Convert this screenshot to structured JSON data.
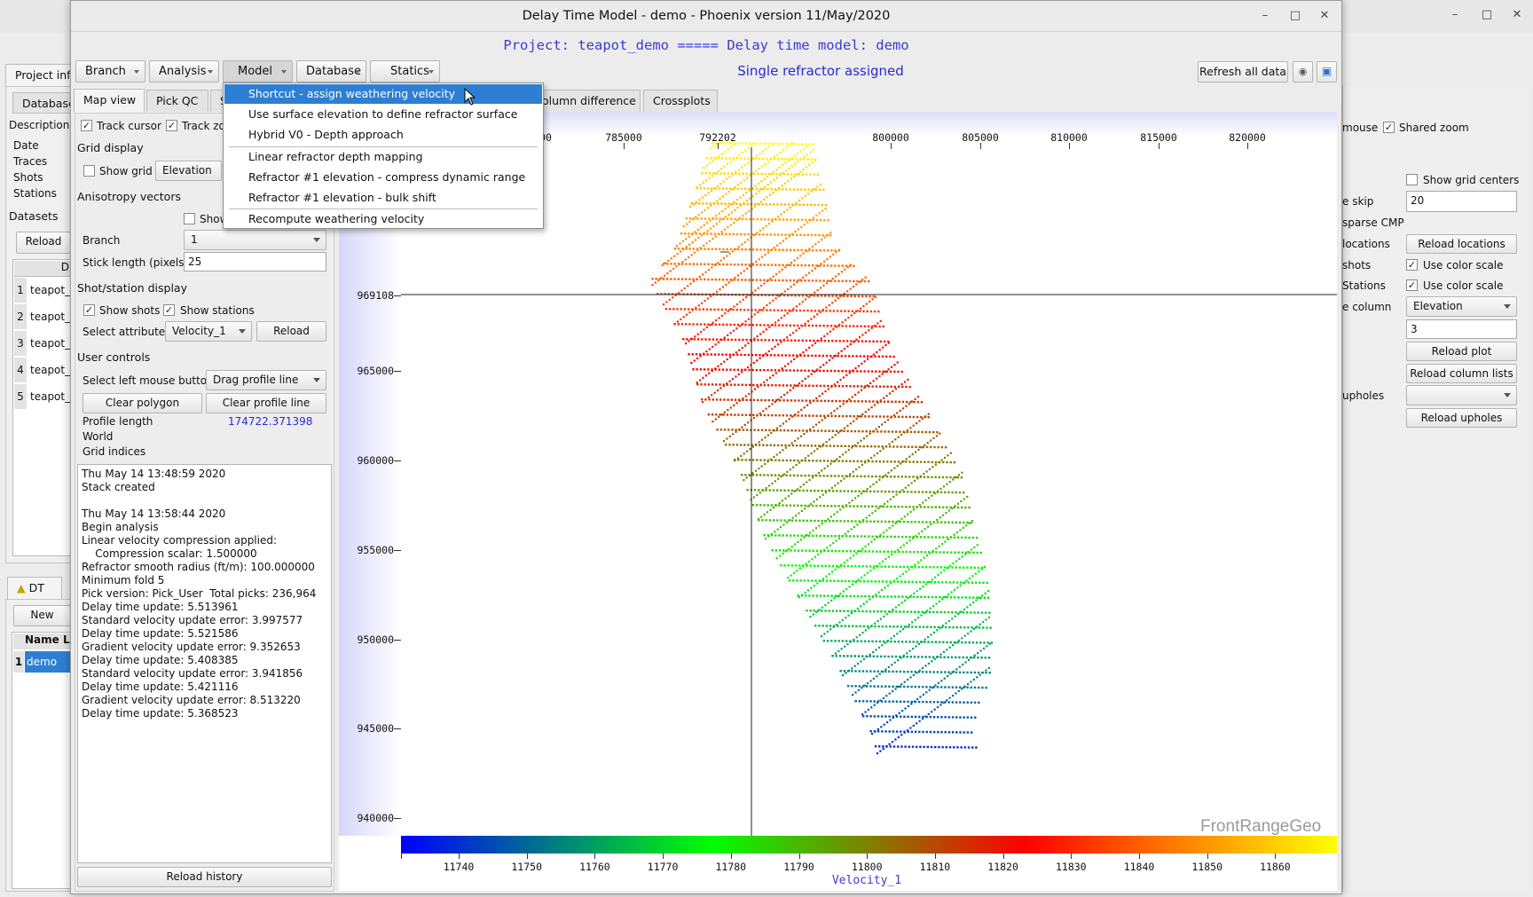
{
  "background_window": {
    "tabs": {
      "project": "Project inf",
      "database": "Database",
      "dt": "DT"
    },
    "nav_items": [
      "Description",
      "Date",
      "Traces",
      "Shots",
      "Stations"
    ],
    "datasets_label": "Datasets",
    "reload_button": "Reload",
    "table_col": "D",
    "dataset_rows": [
      {
        "idx": "1",
        "name": "teapot_"
      },
      {
        "idx": "2",
        "name": "teapot_"
      },
      {
        "idx": "3",
        "name": "teapot_"
      },
      {
        "idx": "4",
        "name": "teapot_"
      },
      {
        "idx": "5",
        "name": "teapot_"
      }
    ],
    "new_button": "New",
    "dt_headers": [
      "Name",
      "L"
    ],
    "dt_row": {
      "idx": "1",
      "name": "demo"
    },
    "right_panel": {
      "mouse_label": "mouse",
      "shared_zoom": "Shared zoom",
      "show_grid_centers": "Show grid centers",
      "skip_label": "e skip",
      "skip_value": "20",
      "sparse_cmp": "sparse CMP",
      "locations_label": "locations",
      "reload_locations": "Reload locations",
      "shots_label": "shots",
      "use_color_scale_1": "Use color scale",
      "stations_label": "Stations",
      "use_color_scale_2": "Use color scale",
      "column_label": "e column",
      "column_value": "Elevation",
      "num_value": "3",
      "reload_plot": "Reload plot",
      "reload_column_lists": "Reload column lists",
      "upholes_label": "upholes",
      "upholes_value": "",
      "reload_upholes": "Reload upholes"
    }
  },
  "window": {
    "title": "Delay Time Model - demo - Phoenix version 11/May/2020",
    "project_line": "Project: teapot_demo ===== Delay time model: demo",
    "status": "Single refractor assigned",
    "refresh_button": "Refresh all data",
    "menus": [
      "Branch",
      "Analysis",
      "Model",
      "Database",
      "Statics"
    ],
    "tabs": [
      "Map view",
      "Pick QC",
      "S",
      "olumn difference",
      "Crossplots"
    ]
  },
  "model_menu": {
    "items": [
      "Shortcut - assign weathering velocity",
      "Use surface elevation to define refractor surface",
      "Hybrid V0 - Depth approach",
      "Linear refractor depth mapping",
      "Refractor #1 elevation - compress dynamic range",
      "Refractor #1 elevation - bulk shift",
      "Recompute weathering velocity"
    ],
    "highlighted": 0
  },
  "controls": {
    "track_cursor": "Track cursor",
    "track_zoom": "Track zo",
    "grid_display": "Grid display",
    "show_grid": "Show grid",
    "grid_attr": "Elevation",
    "anisotropy": "Anisotropy vectors",
    "show_vectors": "Show",
    "branch_label": "Branch",
    "branch_value": "1",
    "stick_label": "Stick length (pixels)",
    "stick_value": "25",
    "shot_station": "Shot/station display",
    "show_shots": "Show shots",
    "show_stations": "Show stations",
    "select_attr": "Select attribute",
    "attr_value": "Velocity_1",
    "reload": "Reload",
    "user_controls": "User controls",
    "left_mouse": "Select left mouse button",
    "mouse_mode": "Drag profile line",
    "clear_polygon": "Clear polygon",
    "clear_profile": "Clear profile line",
    "profile_length_label": "Profile length",
    "profile_length_value": "174722.371398",
    "world": "World",
    "grid_indices": "Grid indices",
    "reload_history": "Reload history"
  },
  "history": [
    "Thu May 14 13:48:59 2020",
    "Stack created",
    "",
    "Thu May 14 13:58:44 2020",
    "Begin analysis",
    "Linear velocity compression applied:",
    "    Compression scalar: 1.500000",
    "Refractor smooth radius (ft/m): 100.000000",
    "Minimum fold 5",
    "Pick version: Pick_User  Total picks: 236,964",
    "Delay time update: 5.513961",
    "Standard velocity update error: 3.997577",
    "Delay time update: 5.521586",
    "Gradient velocity update error: 9.352653",
    "Delay time update: 5.408385",
    "Standard velocity update error: 3.941856",
    "Delay time update: 5.421116",
    "Gradient velocity update error: 8.513220",
    "Delay time update: 5.368523"
  ],
  "map": {
    "x_ticks": [
      "785000",
      "792202",
      "800000",
      "805000",
      "810000",
      "815000",
      "820000"
    ],
    "x_partial": "00",
    "y_ticks": [
      "969108",
      "965000",
      "960000",
      "955000",
      "950000",
      "945000",
      "940000"
    ],
    "cursor_x": 792202,
    "cursor_y": 969108,
    "watermark": "FrontRangeGeo",
    "colorbar_ticks": [
      "11740",
      "11750",
      "11760",
      "11770",
      "11780",
      "11790",
      "11800",
      "11810",
      "11820",
      "11830",
      "11840",
      "11850",
      "11860"
    ],
    "colorbar_label": "Velocity_1",
    "colormap": [
      "#0000ff",
      "#008080",
      "#00ff00",
      "#808000",
      "#ff0000",
      "#ff8000",
      "#ffff00"
    ]
  }
}
